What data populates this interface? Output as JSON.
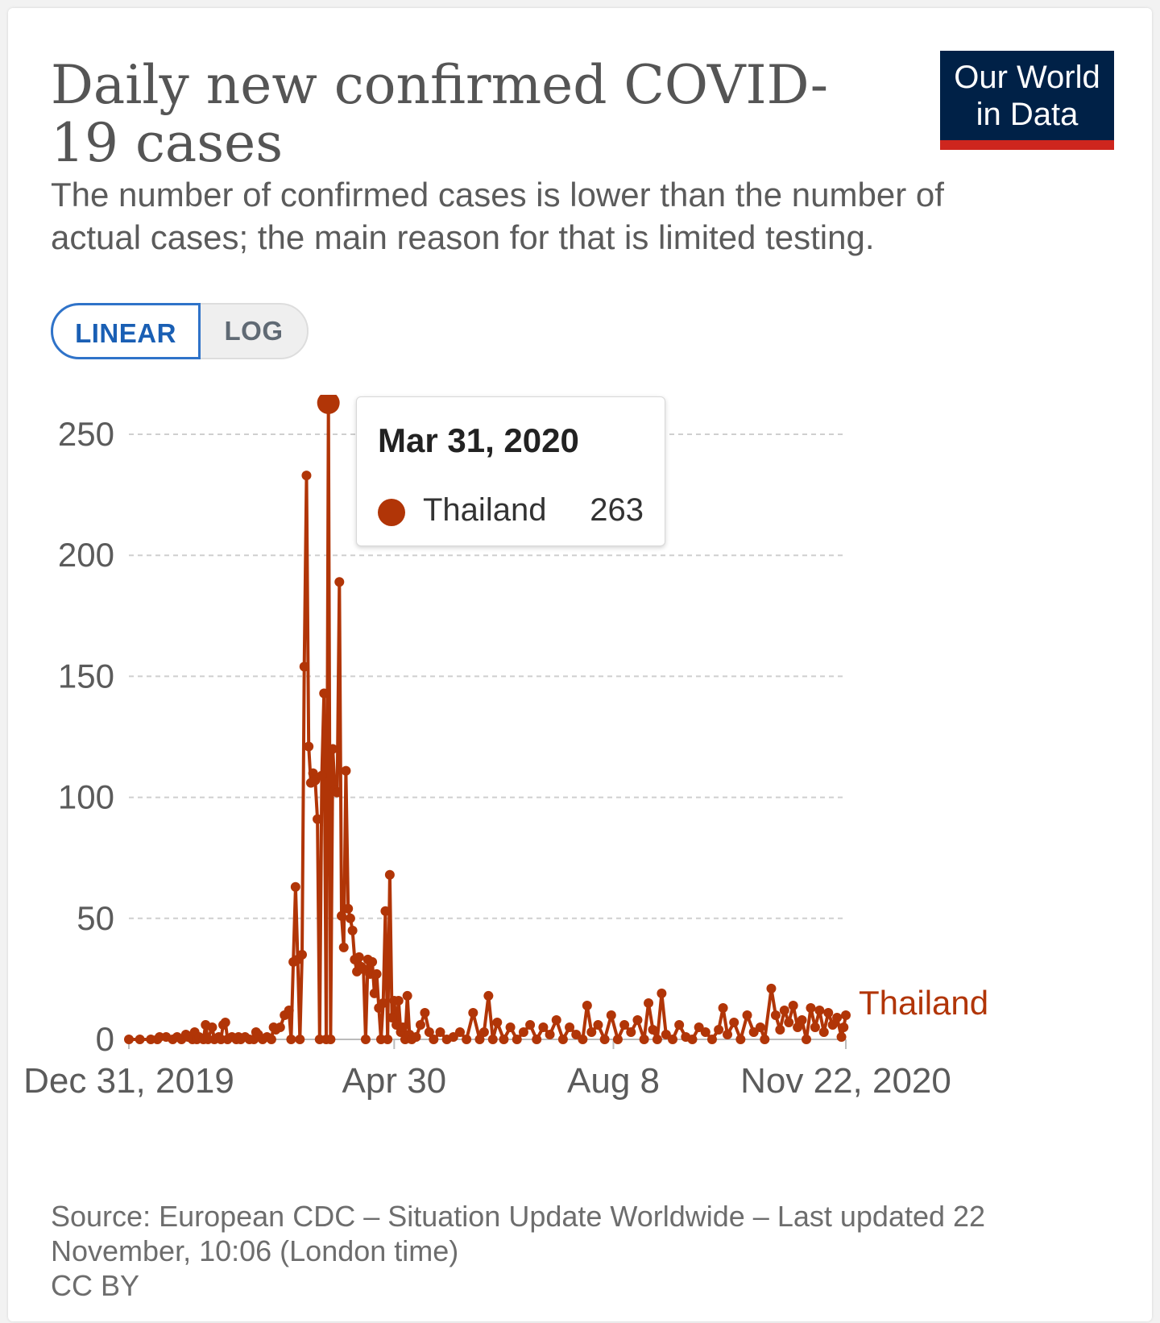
{
  "header": {
    "title": "Daily new confirmed COVID-19 cases",
    "subtitle": "The number of confirmed cases is lower than the number of actual cases; the main reason for that is limited testing.",
    "logo_line1": "Our World",
    "logo_line2": "in Data"
  },
  "scale_toggle": {
    "linear_label": "LINEAR",
    "log_label": "LOG",
    "selected": "LINEAR"
  },
  "tooltip": {
    "date": "Mar 31, 2020",
    "series": "Thailand",
    "value": "263"
  },
  "footer": {
    "source": "Source: European CDC – Situation Update Worldwide – Last updated 22 November, 10:06 (London time)",
    "license": "CC BY"
  },
  "colors": {
    "series": "#b13507",
    "logo_bg": "#002147",
    "logo_accent": "#ce261e",
    "toggle_active": "#2f73c9"
  },
  "chart_data": {
    "type": "line",
    "title": "Daily new confirmed COVID-19 cases",
    "xlabel": "",
    "ylabel": "",
    "x_start_date": "2019-12-31",
    "x_end_date": "2020-11-22",
    "ylim": [
      0,
      263
    ],
    "yticks": [
      0,
      50,
      100,
      150,
      200,
      250
    ],
    "xtick_labels": [
      {
        "label": "Dec 31, 2019",
        "date": "2019-12-31"
      },
      {
        "label": "Apr 30",
        "date": "2020-04-30"
      },
      {
        "label": "Aug 8",
        "date": "2020-08-08"
      },
      {
        "label": "Nov 22, 2020",
        "date": "2020-11-22"
      }
    ],
    "grid": true,
    "legend": "line-end label",
    "highlight": {
      "date": "2020-03-31",
      "value": 263
    },
    "series": [
      {
        "name": "Thailand",
        "points": [
          [
            "2019-12-31",
            0
          ],
          [
            "2020-01-05",
            0
          ],
          [
            "2020-01-10",
            0
          ],
          [
            "2020-01-13",
            0
          ],
          [
            "2020-01-14",
            1
          ],
          [
            "2020-01-17",
            1
          ],
          [
            "2020-01-20",
            0
          ],
          [
            "2020-01-22",
            1
          ],
          [
            "2020-01-24",
            0
          ],
          [
            "2020-01-26",
            2
          ],
          [
            "2020-01-27",
            1
          ],
          [
            "2020-01-29",
            0
          ],
          [
            "2020-01-30",
            3
          ],
          [
            "2020-01-31",
            0
          ],
          [
            "2020-02-01",
            1
          ],
          [
            "2020-02-03",
            0
          ],
          [
            "2020-02-04",
            6
          ],
          [
            "2020-02-05",
            0
          ],
          [
            "2020-02-07",
            5
          ],
          [
            "2020-02-08",
            0
          ],
          [
            "2020-02-10",
            1
          ],
          [
            "2020-02-11",
            0
          ],
          [
            "2020-02-12",
            6
          ],
          [
            "2020-02-13",
            7
          ],
          [
            "2020-02-14",
            0
          ],
          [
            "2020-02-16",
            1
          ],
          [
            "2020-02-18",
            0
          ],
          [
            "2020-02-19",
            1
          ],
          [
            "2020-02-20",
            0
          ],
          [
            "2020-02-22",
            1
          ],
          [
            "2020-02-24",
            0
          ],
          [
            "2020-02-26",
            0
          ],
          [
            "2020-02-27",
            3
          ],
          [
            "2020-02-28",
            2
          ],
          [
            "2020-03-01",
            0
          ],
          [
            "2020-03-03",
            1
          ],
          [
            "2020-03-05",
            0
          ],
          [
            "2020-03-06",
            5
          ],
          [
            "2020-03-07",
            4
          ],
          [
            "2020-03-09",
            5
          ],
          [
            "2020-03-11",
            10
          ],
          [
            "2020-03-13",
            12
          ],
          [
            "2020-03-14",
            0
          ],
          [
            "2020-03-15",
            32
          ],
          [
            "2020-03-16",
            63
          ],
          [
            "2020-03-17",
            33
          ],
          [
            "2020-03-18",
            0
          ],
          [
            "2020-03-19",
            35
          ],
          [
            "2020-03-20",
            154
          ],
          [
            "2020-03-21",
            233
          ],
          [
            "2020-03-22",
            121
          ],
          [
            "2020-03-23",
            106
          ],
          [
            "2020-03-24",
            110
          ],
          [
            "2020-03-25",
            107
          ],
          [
            "2020-03-26",
            91
          ],
          [
            "2020-03-27",
            0
          ],
          [
            "2020-03-28",
            109
          ],
          [
            "2020-03-29",
            143
          ],
          [
            "2020-03-30",
            0
          ],
          [
            "2020-03-31",
            263
          ],
          [
            "2020-04-01",
            0
          ],
          [
            "2020-04-02",
            120
          ],
          [
            "2020-04-03",
            103
          ],
          [
            "2020-04-04",
            102
          ],
          [
            "2020-04-05",
            189
          ],
          [
            "2020-04-06",
            51
          ],
          [
            "2020-04-07",
            38
          ],
          [
            "2020-04-08",
            111
          ],
          [
            "2020-04-09",
            54
          ],
          [
            "2020-04-10",
            50
          ],
          [
            "2020-04-11",
            45
          ],
          [
            "2020-04-12",
            33
          ],
          [
            "2020-04-13",
            28
          ],
          [
            "2020-04-14",
            34
          ],
          [
            "2020-04-15",
            30
          ],
          [
            "2020-04-16",
            29
          ],
          [
            "2020-04-17",
            0
          ],
          [
            "2020-04-18",
            33
          ],
          [
            "2020-04-19",
            27
          ],
          [
            "2020-04-20",
            32
          ],
          [
            "2020-04-21",
            19
          ],
          [
            "2020-04-22",
            27
          ],
          [
            "2020-04-23",
            13
          ],
          [
            "2020-04-24",
            0
          ],
          [
            "2020-04-25",
            15
          ],
          [
            "2020-04-26",
            53
          ],
          [
            "2020-04-27",
            0
          ],
          [
            "2020-04-28",
            68
          ],
          [
            "2020-04-29",
            9
          ],
          [
            "2020-04-30",
            16
          ],
          [
            "2020-05-01",
            6
          ],
          [
            "2020-05-02",
            16
          ],
          [
            "2020-05-03",
            3
          ],
          [
            "2020-05-04",
            5
          ],
          [
            "2020-05-05",
            0
          ],
          [
            "2020-05-06",
            18
          ],
          [
            "2020-05-07",
            2
          ],
          [
            "2020-05-08",
            0
          ],
          [
            "2020-05-10",
            1
          ],
          [
            "2020-05-12",
            6
          ],
          [
            "2020-05-14",
            11
          ],
          [
            "2020-05-16",
            3
          ],
          [
            "2020-05-18",
            0
          ],
          [
            "2020-05-21",
            3
          ],
          [
            "2020-05-24",
            0
          ],
          [
            "2020-05-27",
            1
          ],
          [
            "2020-05-30",
            3
          ],
          [
            "2020-06-02",
            0
          ],
          [
            "2020-06-05",
            11
          ],
          [
            "2020-06-08",
            0
          ],
          [
            "2020-06-10",
            3
          ],
          [
            "2020-06-12",
            18
          ],
          [
            "2020-06-14",
            0
          ],
          [
            "2020-06-16",
            7
          ],
          [
            "2020-06-19",
            0
          ],
          [
            "2020-06-22",
            5
          ],
          [
            "2020-06-25",
            0
          ],
          [
            "2020-06-28",
            3
          ],
          [
            "2020-07-01",
            6
          ],
          [
            "2020-07-04",
            0
          ],
          [
            "2020-07-07",
            5
          ],
          [
            "2020-07-10",
            2
          ],
          [
            "2020-07-13",
            8
          ],
          [
            "2020-07-16",
            0
          ],
          [
            "2020-07-19",
            5
          ],
          [
            "2020-07-22",
            2
          ],
          [
            "2020-07-25",
            0
          ],
          [
            "2020-07-27",
            14
          ],
          [
            "2020-07-29",
            3
          ],
          [
            "2020-08-01",
            6
          ],
          [
            "2020-08-04",
            0
          ],
          [
            "2020-08-07",
            10
          ],
          [
            "2020-08-10",
            0
          ],
          [
            "2020-08-13",
            6
          ],
          [
            "2020-08-16",
            3
          ],
          [
            "2020-08-19",
            8
          ],
          [
            "2020-08-22",
            0
          ],
          [
            "2020-08-24",
            15
          ],
          [
            "2020-08-26",
            4
          ],
          [
            "2020-08-28",
            0
          ],
          [
            "2020-08-30",
            19
          ],
          [
            "2020-09-01",
            2
          ],
          [
            "2020-09-04",
            0
          ],
          [
            "2020-09-07",
            6
          ],
          [
            "2020-09-10",
            1
          ],
          [
            "2020-09-13",
            0
          ],
          [
            "2020-09-16",
            5
          ],
          [
            "2020-09-19",
            3
          ],
          [
            "2020-09-22",
            0
          ],
          [
            "2020-09-25",
            4
          ],
          [
            "2020-09-27",
            13
          ],
          [
            "2020-09-29",
            2
          ],
          [
            "2020-10-02",
            7
          ],
          [
            "2020-10-05",
            0
          ],
          [
            "2020-10-08",
            10
          ],
          [
            "2020-10-11",
            3
          ],
          [
            "2020-10-14",
            5
          ],
          [
            "2020-10-16",
            0
          ],
          [
            "2020-10-19",
            21
          ],
          [
            "2020-10-21",
            10
          ],
          [
            "2020-10-23",
            4
          ],
          [
            "2020-10-25",
            12
          ],
          [
            "2020-10-27",
            7
          ],
          [
            "2020-10-29",
            14
          ],
          [
            "2020-10-31",
            5
          ],
          [
            "2020-11-02",
            8
          ],
          [
            "2020-11-04",
            0
          ],
          [
            "2020-11-06",
            13
          ],
          [
            "2020-11-08",
            5
          ],
          [
            "2020-11-10",
            12
          ],
          [
            "2020-11-12",
            3
          ],
          [
            "2020-11-14",
            11
          ],
          [
            "2020-11-16",
            6
          ],
          [
            "2020-11-18",
            9
          ],
          [
            "2020-11-20",
            1
          ],
          [
            "2020-11-21",
            5
          ],
          [
            "2020-11-22",
            10
          ]
        ]
      }
    ]
  }
}
